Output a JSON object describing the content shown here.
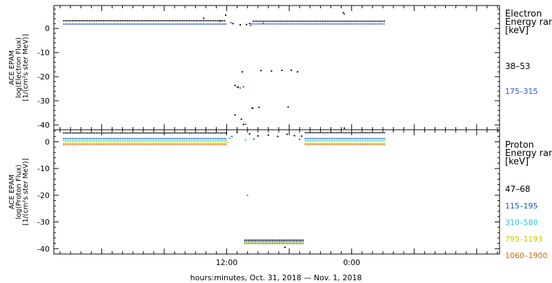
{
  "chart_data": {
    "type": "scatter",
    "xlabel": "hours:minutes, Oct. 31, 2018 — Nov. 1, 2018",
    "x_tick_labels": [
      {
        "hour": 12,
        "label": "12:00"
      },
      {
        "hour": 24,
        "label": "0:00"
      }
    ],
    "xlim": [
      -4.6,
      38.2
    ],
    "panels": [
      {
        "id": "electron",
        "ylabel_lines": [
          "ACE EPAM",
          "log(Electron Flux)",
          "[1/(cm²s ster MeV)]"
        ],
        "ylim": [
          -42,
          9.5
        ],
        "yticks": [
          0,
          -10,
          -20,
          -30,
          -40
        ],
        "legend_title_lines": [
          "Electron",
          "Energy range",
          "[keV]"
        ],
        "channels": [
          {
            "label": "38–53",
            "color": "#000000"
          },
          {
            "label": "175–315",
            "color": "#2255cc"
          }
        ],
        "series": [
          {
            "name": "38–53",
            "color": "#000000",
            "segments": [
              {
                "x0": -3.7,
                "x1": 11.9,
                "y": 3.2
              },
              {
                "x0": 14.5,
                "x1": 27.2,
                "y": 3.0
              }
            ],
            "points": [
              [
                11.9,
                5.5
              ],
              [
                9.8,
                4.2
              ],
              [
                23.2,
                6.5
              ],
              [
                11.4,
                3.0
              ],
              [
                12.6,
                2.0
              ],
              [
                13.3,
                1.5
              ],
              [
                13.9,
                1.6
              ],
              [
                14.2,
                2.0
              ],
              [
                13.5,
                -18.0
              ],
              [
                15.3,
                -17.5
              ],
              [
                16.3,
                -17.6
              ],
              [
                17.3,
                -17.4
              ],
              [
                18.2,
                -17.3
              ],
              [
                18.8,
                -18.0
              ],
              [
                12.8,
                -23.6
              ],
              [
                13.1,
                -24.3
              ],
              [
                12.8,
                -35.8
              ],
              [
                13.4,
                -37.6
              ],
              [
                14.5,
                -33.1
              ],
              [
                15.1,
                -32.7
              ],
              [
                17.9,
                -32.5
              ],
              [
                13.6,
                -39.8
              ]
            ]
          },
          {
            "name": "175–315",
            "color": "#2255cc",
            "segments": [
              {
                "x0": -3.7,
                "x1": 12.0,
                "y": 1.8
              },
              {
                "x0": 14.3,
                "x1": 27.2,
                "y": 1.9
              }
            ],
            "points": [
              [
                23.3,
                6.0
              ],
              [
                12.4,
                2.4
              ],
              [
                14.3,
                1.2
              ],
              [
                15.5,
                2.2
              ],
              [
                13.0,
                -24.4
              ],
              [
                13.3,
                -24.7
              ],
              [
                13.6,
                -24.2
              ],
              [
                14.4,
                -32.9
              ],
              [
                13.8,
                -39.7
              ]
            ]
          }
        ]
      },
      {
        "id": "proton",
        "ylabel_lines": [
          "ACE EPAM",
          "log(Proton Flux)",
          "[1/(cm²s ster MeV)]"
        ],
        "ylim": [
          -42,
          4.5
        ],
        "yticks": [
          0,
          -10,
          -20,
          -30,
          -40
        ],
        "legend_title_lines": [
          "Proton",
          "Energy range",
          "[keV]"
        ],
        "channels": [
          {
            "label": "47–68",
            "color": "#000000"
          },
          {
            "label": "115–195",
            "color": "#1a55c8"
          },
          {
            "label": "310–580",
            "color": "#22c8dc"
          },
          {
            "label": "795–1193",
            "color": "#d8d800"
          },
          {
            "label": "1060–1900",
            "color": "#e06400"
          }
        ],
        "series": [
          {
            "name": "47–68",
            "color": "#000000",
            "segments": [
              {
                "x0": -3.7,
                "x1": 12.0,
                "y": 3.3
              },
              {
                "x0": 19.5,
                "x1": 27.2,
                "y": 3.4
              },
              {
                "x0": 13.7,
                "x1": 19.4,
                "y": -36.8
              }
            ],
            "points": [
              [
                13.0,
                3.5
              ],
              [
                14.2,
                3.0
              ],
              [
                15.0,
                2.2
              ],
              [
                16.0,
                2.5
              ],
              [
                16.9,
                2.0
              ],
              [
                17.8,
                2.8
              ],
              [
                18.5,
                2.3
              ],
              [
                19.2,
                2.1
              ],
              [
                23.3,
                5.1
              ],
              [
                17.6,
                -39.5
              ]
            ]
          },
          {
            "name": "115–195",
            "color": "#1a55c8",
            "segments": [
              {
                "x0": -3.7,
                "x1": 12.0,
                "y": 1.2
              },
              {
                "x0": 19.5,
                "x1": 27.2,
                "y": 1.2
              },
              {
                "x0": 13.7,
                "x1": 19.4,
                "y": -37.2
              }
            ],
            "points": [
              [
                12.5,
                2.0
              ],
              [
                14.6,
                1.0
              ],
              [
                19.0,
                0.9
              ]
            ]
          },
          {
            "name": "310–580",
            "color": "#22c8dc",
            "segments": [
              {
                "x0": -3.7,
                "x1": 12.0,
                "y": 0.4
              },
              {
                "x0": 19.5,
                "x1": 27.2,
                "y": 0.4
              },
              {
                "x0": 13.7,
                "x1": 19.4,
                "y": -37.5
              }
            ],
            "points": [
              [
                12.3,
                1.4
              ],
              [
                13.8,
                0.6
              ]
            ]
          },
          {
            "name": "795–1193",
            "color": "#d8d800",
            "segments": [
              {
                "x0": -3.7,
                "x1": 12.0,
                "y": -0.4
              },
              {
                "x0": 19.5,
                "x1": 27.2,
                "y": -0.5
              },
              {
                "x0": 13.7,
                "x1": 19.4,
                "y": -37.9
              }
            ],
            "points": [
              [
                12.1,
                -0.2
              ]
            ]
          },
          {
            "name": "1060–1900",
            "color": "#e06400",
            "segments": [
              {
                "x0": -3.7,
                "x1": 12.0,
                "y": -1.0
              },
              {
                "x0": 19.5,
                "x1": 27.2,
                "y": -1.0
              },
              {
                "x0": 13.7,
                "x1": 19.4,
                "y": -38.1
              }
            ],
            "points": [
              [
                14.0,
                -20.0
              ]
            ]
          }
        ]
      }
    ]
  }
}
